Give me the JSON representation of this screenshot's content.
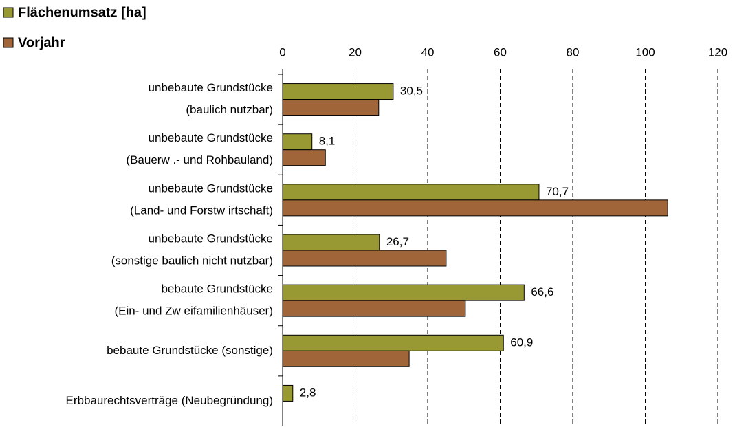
{
  "chart_data": {
    "type": "bar",
    "orientation": "horizontal",
    "categories": [
      [
        "unbebaute Grundstücke",
        "(baulich nutzbar)"
      ],
      [
        "unbebaute Grundstücke",
        "(Bauerw .- und Rohbauland)"
      ],
      [
        "unbebaute Grundstücke",
        "(Land- und Forstw irtschaft)"
      ],
      [
        "unbebaute Grundstücke",
        "(sonstige baulich nicht nutzbar)"
      ],
      [
        "bebaute Grundstücke",
        "(Ein- und Zw eifamilienhäuser)"
      ],
      [
        "bebaute Grundstücke (sonstige)"
      ],
      [
        "Erbbaurechtsverträge (Neubegründung)"
      ]
    ],
    "series": [
      {
        "name": "Flächenumsatz [ha]",
        "color": "#999933",
        "values": [
          30.5,
          8.1,
          70.7,
          26.7,
          66.6,
          60.9,
          2.8
        ],
        "value_labels": [
          "30,5",
          "8,1",
          "70,7",
          "26,7",
          "66,6",
          "60,9",
          "2,8"
        ]
      },
      {
        "name": "Vorjahr",
        "color": "#a0663a",
        "values": [
          26.5,
          11.8,
          106.2,
          45.1,
          50.4,
          34.9,
          null
        ]
      }
    ],
    "xlim": [
      0,
      120
    ],
    "xticks": [
      0,
      20,
      40,
      60,
      80,
      100,
      120
    ],
    "grid": true
  }
}
